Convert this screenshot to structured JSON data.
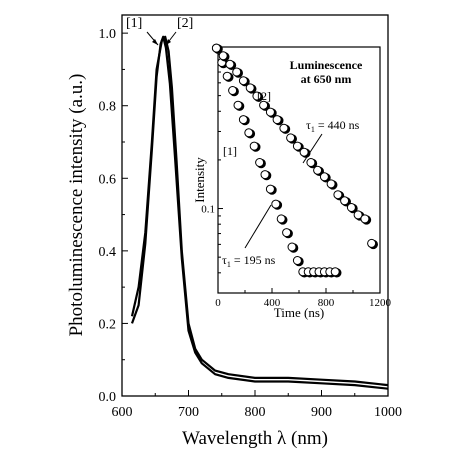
{
  "chart_data": [
    {
      "type": "line",
      "xlabel": "Wavelength λ (nm)",
      "ylabel": "Photoluminescence intensity (a.u.)",
      "xlim": [
        600,
        1000
      ],
      "ylim": [
        0,
        1.05
      ],
      "x_ticks": [
        "600",
        "700",
        "800",
        "900",
        "1000"
      ],
      "y_ticks": [
        "0.0",
        "0.2",
        "0.4",
        "0.6",
        "0.8",
        "1.0"
      ],
      "series": [
        {
          "name": "[1]",
          "x": [
            615,
            625,
            635,
            645,
            652,
            658,
            662,
            666,
            672,
            680,
            690,
            700,
            710,
            720,
            740,
            760,
            800,
            850,
            900,
            950,
            1000
          ],
          "values": [
            0.2,
            0.25,
            0.42,
            0.68,
            0.88,
            0.97,
            0.99,
            0.96,
            0.86,
            0.65,
            0.38,
            0.18,
            0.12,
            0.09,
            0.06,
            0.05,
            0.04,
            0.04,
            0.035,
            0.03,
            0.02
          ]
        },
        {
          "name": "[2]",
          "x": [
            615,
            625,
            635,
            645,
            652,
            660,
            665,
            670,
            675,
            682,
            690,
            700,
            710,
            720,
            740,
            760,
            800,
            850,
            900,
            950,
            1000
          ],
          "values": [
            0.22,
            0.3,
            0.45,
            0.7,
            0.9,
            0.98,
            0.99,
            0.95,
            0.85,
            0.65,
            0.4,
            0.2,
            0.13,
            0.1,
            0.07,
            0.06,
            0.05,
            0.05,
            0.045,
            0.04,
            0.03
          ]
        }
      ],
      "annotations": [
        "[1]",
        "[2]"
      ]
    },
    {
      "type": "scatter",
      "title": "Luminescence at 650 nm",
      "title_lines": [
        "Luminescence",
        "at 650 nm"
      ],
      "xlabel": "Time (ns)",
      "ylabel": "Intensity",
      "xlim": [
        0,
        1200
      ],
      "ylim": [
        0.03,
        1
      ],
      "y_scale": "log",
      "x_ticks": [
        "0",
        "400",
        "800",
        "1200"
      ],
      "y_ticks": [
        "0.1"
      ],
      "series": [
        {
          "name": "[1]",
          "x": [
            0,
            40,
            80,
            120,
            160,
            200,
            240,
            280,
            320,
            360,
            400,
            440,
            480,
            520,
            560,
            600,
            640,
            680,
            720,
            760,
            800,
            840,
            880
          ],
          "values": [
            0.97,
            0.79,
            0.65,
            0.53,
            0.43,
            0.35,
            0.29,
            0.24,
            0.19,
            0.16,
            0.13,
            0.105,
            0.085,
            0.07,
            0.057,
            0.047,
            0.04,
            0.04,
            0.04,
            0.04,
            0.04,
            0.04,
            0.04
          ]
        },
        {
          "name": "[2]",
          "x": [
            0,
            50,
            100,
            150,
            200,
            250,
            300,
            350,
            400,
            450,
            500,
            550,
            600,
            650,
            700,
            750,
            800,
            850,
            900,
            950,
            1000,
            1050,
            1100,
            1150
          ],
          "values": [
            0.97,
            0.87,
            0.77,
            0.69,
            0.61,
            0.55,
            0.49,
            0.43,
            0.39,
            0.35,
            0.31,
            0.27,
            0.24,
            0.22,
            0.19,
            0.17,
            0.155,
            0.14,
            0.12,
            0.11,
            0.1,
            0.09,
            0.085,
            0.06
          ]
        }
      ],
      "annotations": [
        "[1]",
        "[2]",
        "τ1 = 195 ns",
        "τ1 = 440 ns"
      ]
    }
  ],
  "labels": {
    "peak_1": "[1]",
    "peak_2": "[2]",
    "inset_1": "[1]",
    "inset_2": "[2]",
    "tau_1_prefix": "τ",
    "tau_1_sub": "1",
    "tau_1_value": " = 195 ns",
    "tau_2_prefix": "τ",
    "tau_2_sub": "1",
    "tau_2_value": " = 440 ns"
  }
}
